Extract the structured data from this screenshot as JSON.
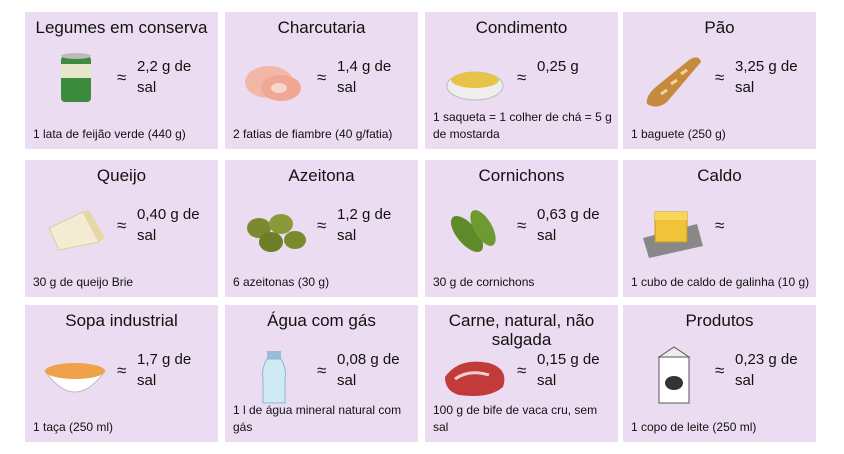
{
  "approx": "≈",
  "cards": [
    {
      "title": "Legumes em conserva",
      "amount": "2,2 g de sal",
      "note": "1 lata de feijão verde (440 g)"
    },
    {
      "title": "Charcutaria",
      "amount": "1,4 g de sal",
      "note": "2 fatias de fiambre (40 g/fatia)"
    },
    {
      "title": "Condimento",
      "amount": "0,25 g",
      "note": "1 saqueta = 1 colher de chá = 5 g de mostarda"
    },
    {
      "title": "Pão",
      "amount": "3,25 g de sal",
      "note": "1 baguete (250 g)"
    },
    {
      "title": "Queijo",
      "amount": "0,40 g de sal",
      "note": "30 g de queijo Brie"
    },
    {
      "title": "Azeitona",
      "amount": "1,2 g de sal",
      "note": "6 azeitonas (30 g)"
    },
    {
      "title": "Cornichons",
      "amount": "0,63 g de sal",
      "note": "30 g de cornichons"
    },
    {
      "title": "Caldo",
      "note": "1 cubo de caldo de galinha (10 g)"
    },
    {
      "title": "Sopa industrial",
      "amount": "1,7 g de sal",
      "note": "1 taça (250 ml)"
    },
    {
      "title": "Água com gás",
      "amount": "0,08 g de sal",
      "note": "1 l de água mineral natural com gás"
    },
    {
      "title": "Carne, natural, não salgada",
      "amount": "0,15 g de sal",
      "note": "100 g de bife de vaca cru, sem sal"
    },
    {
      "title": "Produtos",
      "amount": "0,23 g de sal",
      "note": "1 copo de leite (250 ml)"
    }
  ]
}
